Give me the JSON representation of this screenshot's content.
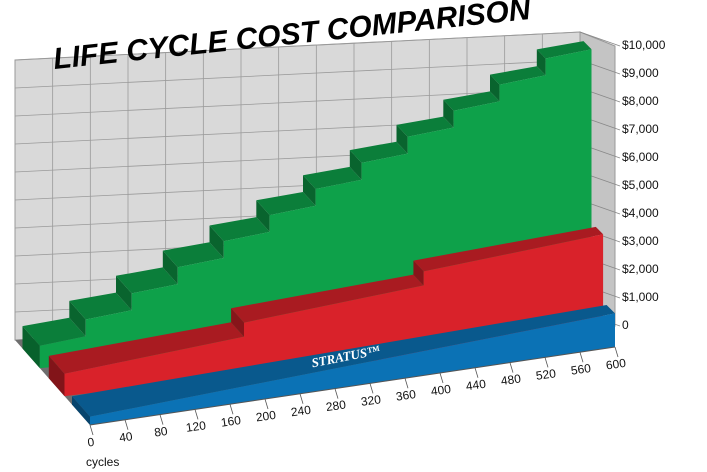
{
  "chart_data": {
    "type": "stepped-area-3d",
    "title": "LIFE CYCLE COST COMPARISON",
    "x_label": "cycles",
    "xlim": [
      0,
      600
    ],
    "xticks": [
      0,
      40,
      80,
      120,
      160,
      200,
      240,
      280,
      320,
      360,
      400,
      440,
      480,
      520,
      560,
      600
    ],
    "ylim": [
      0,
      10000
    ],
    "yticks": [
      0,
      {
        "value": 1000,
        "label": "$1,000"
      },
      {
        "value": 2000,
        "label": "$2,000"
      },
      {
        "value": 3000,
        "label": "$3,000"
      },
      {
        "value": 4000,
        "label": "$4,000"
      },
      {
        "value": 5000,
        "label": "$5,000"
      },
      {
        "value": 6000,
        "label": "$6,000"
      },
      {
        "value": 7000,
        "label": "$7,000"
      },
      {
        "value": 8000,
        "label": "$8,000"
      },
      {
        "value": 9000,
        "label": "$9,000"
      },
      {
        "value": 10000,
        "label": "$10,000"
      }
    ],
    "grid": true,
    "series": [
      {
        "color": "#0ea14a",
        "x": [
          0,
          50,
          50,
          100,
          100,
          150,
          150,
          200,
          200,
          250,
          250,
          300,
          300,
          350,
          350,
          400,
          400,
          450,
          450,
          500,
          500,
          550,
          550,
          600
        ],
        "values": [
          800,
          1000,
          1600,
          1800,
          2400,
          2600,
          3200,
          3400,
          4000,
          4200,
          4800,
          5000,
          5600,
          5800,
          6400,
          6600,
          7200,
          7400,
          8000,
          8200,
          8800,
          9000,
          9600,
          9800
        ]
      },
      {
        "color": "#d9222a",
        "x": [
          0,
          200,
          200,
          400,
          400,
          600
        ],
        "values": [
          800,
          1400,
          1900,
          2500,
          3000,
          3600
        ]
      },
      {
        "name": "STRATUS™",
        "color": "#0b72b5",
        "x": [
          0,
          600
        ],
        "values": [
          300,
          1200
        ]
      }
    ]
  }
}
